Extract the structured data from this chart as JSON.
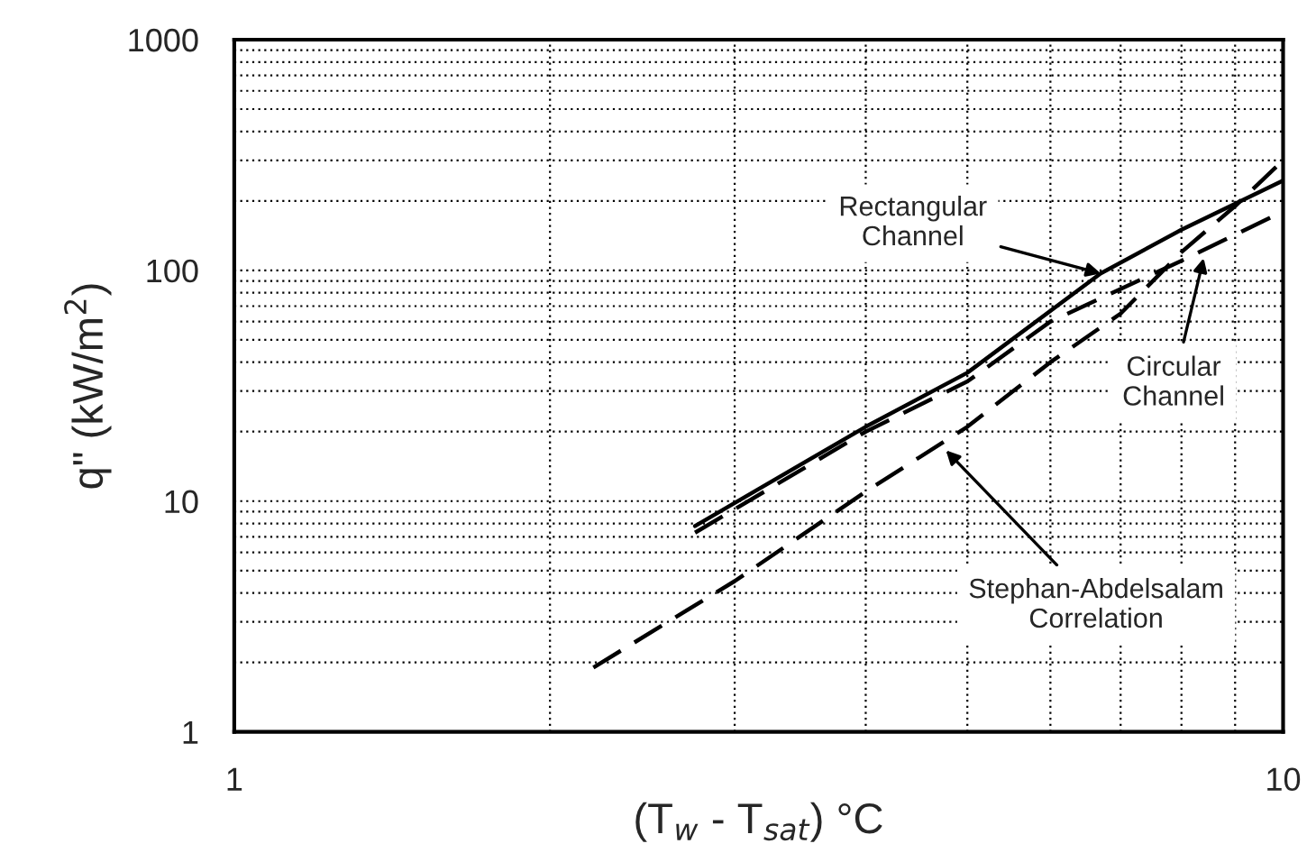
{
  "chart_data": {
    "type": "line",
    "xlabel": "(T$_{w}$ - T$_{sat}$) °C",
    "ylabel": "q\" (kW/m$^{2}$)",
    "log": "xy",
    "grid": true,
    "legend": false,
    "marker": "none",
    "xlim": [
      1,
      10
    ],
    "xticks": [
      1,
      10
    ],
    "ylim": [
      1,
      1000
    ],
    "yticks": [
      1,
      10,
      100,
      1000
    ],
    "series": [
      {
        "color": "#000000",
        "line_style": "solid",
        "x": [
          2.75,
          4,
          5,
          6.7,
          8,
          10
        ],
        "values": [
          7.8,
          21,
          36,
          97,
          150,
          245
        ]
      },
      {
        "color": "#000000",
        "line_style": "dashed",
        "x": [
          2.75,
          4,
          5,
          6,
          8,
          10
        ],
        "values": [
          7.3,
          20,
          33,
          60,
          110,
          180
        ]
      },
      {
        "color": "#000000",
        "line_style": "dashed",
        "x": [
          2.2,
          3,
          4,
          5,
          6,
          7,
          8,
          9,
          10
        ],
        "values": [
          1.9,
          4.5,
          11,
          21,
          40,
          65,
          120,
          190,
          300
        ]
      }
    ],
    "annotations": [
      {
        "text": "Rectangular\nChannel",
        "x": 6.7,
        "y": 97
      },
      {
        "text": "Circular\nChannel",
        "x": 8.4,
        "y": 113
      },
      {
        "text": "Stephan-Abdelsalam\nCorrelation",
        "x": 4.77,
        "y": 16.6
      }
    ]
  }
}
